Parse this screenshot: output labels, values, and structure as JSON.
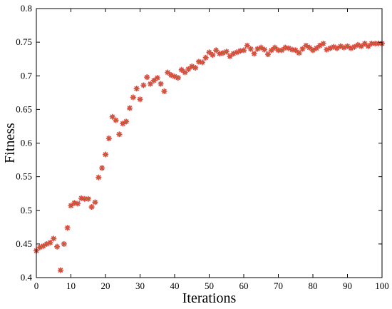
{
  "chart_data": {
    "type": "scatter",
    "title": "",
    "xlabel": "Iterations",
    "ylabel": "Fitness",
    "xlim": [
      0,
      100
    ],
    "ylim": [
      0.4,
      0.8
    ],
    "xticks": [
      0,
      10,
      20,
      30,
      40,
      50,
      60,
      70,
      80,
      90,
      100
    ],
    "yticks": [
      0.4,
      0.45,
      0.5,
      0.55,
      0.6,
      0.65,
      0.7,
      0.75,
      0.8
    ],
    "grid": false,
    "legend": "none",
    "marker": "asterisk",
    "colors": {
      "marker_primary": "#e0443a",
      "marker_secondary": "#6b9a3a",
      "axis": "#000000"
    },
    "series": [
      {
        "x": [
          0,
          1,
          2,
          3,
          4,
          5,
          6,
          7,
          8,
          9,
          10,
          11,
          12,
          13,
          14,
          15,
          16,
          17,
          18,
          19,
          20,
          21,
          22,
          23,
          24,
          25,
          26,
          27,
          28,
          29,
          30,
          31,
          32,
          33,
          34,
          35,
          36,
          37,
          38,
          39,
          40,
          41,
          42,
          43,
          44,
          45,
          46,
          47,
          48,
          49,
          50,
          51,
          52,
          53,
          54,
          55,
          56,
          57,
          58,
          59,
          60,
          61,
          62,
          63,
          64,
          65,
          66,
          67,
          68,
          69,
          70,
          71,
          72,
          73,
          74,
          75,
          76,
          77,
          78,
          79,
          80,
          81,
          82,
          83,
          84,
          85,
          86,
          87,
          88,
          89,
          90,
          91,
          92,
          93,
          94,
          95,
          96,
          97,
          98,
          99,
          100
        ],
        "y": [
          0.44,
          0.445,
          0.447,
          0.45,
          0.452,
          0.458,
          0.446,
          0.411,
          0.45,
          0.474,
          0.507,
          0.511,
          0.51,
          0.518,
          0.517,
          0.517,
          0.505,
          0.512,
          0.549,
          0.563,
          0.583,
          0.607,
          0.639,
          0.634,
          0.613,
          0.629,
          0.632,
          0.652,
          0.668,
          0.681,
          0.665,
          0.686,
          0.698,
          0.688,
          0.693,
          0.697,
          0.688,
          0.677,
          0.705,
          0.701,
          0.699,
          0.697,
          0.709,
          0.705,
          0.71,
          0.714,
          0.712,
          0.721,
          0.72,
          0.727,
          0.735,
          0.731,
          0.738,
          0.733,
          0.734,
          0.736,
          0.729,
          0.733,
          0.735,
          0.737,
          0.738,
          0.745,
          0.74,
          0.733,
          0.74,
          0.742,
          0.739,
          0.732,
          0.738,
          0.742,
          0.738,
          0.738,
          0.742,
          0.741,
          0.739,
          0.738,
          0.734,
          0.74,
          0.745,
          0.742,
          0.738,
          0.741,
          0.745,
          0.748,
          0.739,
          0.741,
          0.743,
          0.741,
          0.744,
          0.742,
          0.744,
          0.741,
          0.743,
          0.746,
          0.744,
          0.748,
          0.744,
          0.748,
          0.748,
          0.748,
          0.748
        ]
      }
    ]
  }
}
